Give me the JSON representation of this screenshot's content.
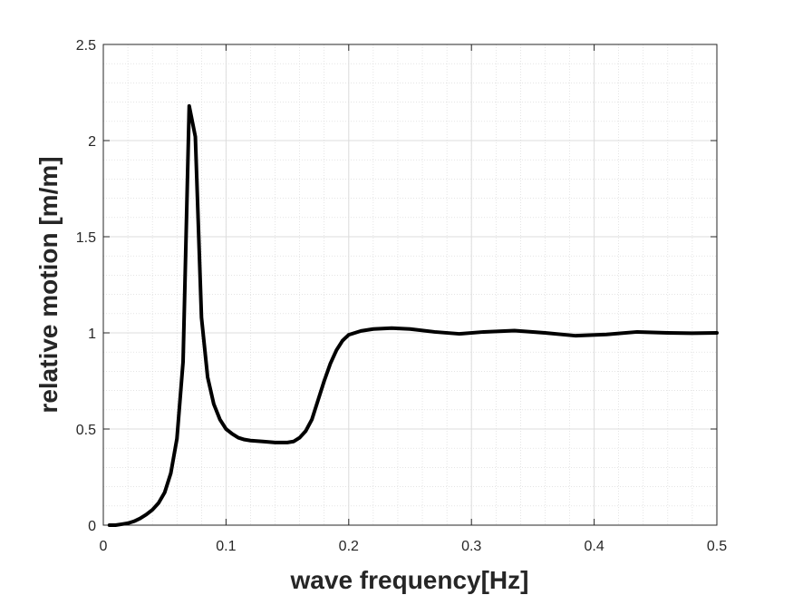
{
  "chart_data": {
    "type": "line",
    "title": "",
    "xlabel": "wave frequency[Hz]",
    "ylabel": "relative motion [m/m]",
    "xlim": [
      0,
      0.5
    ],
    "ylim": [
      0,
      2.5
    ],
    "xticks": [
      0,
      0.1,
      0.2,
      0.3,
      0.4,
      0.5
    ],
    "xtick_labels": [
      "0",
      "0.1",
      "0.2",
      "0.3",
      "0.4",
      "0.5"
    ],
    "yticks": [
      0,
      0.5,
      1,
      1.5,
      2,
      2.5
    ],
    "ytick_labels": [
      "0",
      "0.5",
      "1",
      "1.5",
      "2",
      "2.5"
    ],
    "grid": true,
    "minor_grid": true,
    "line_color": "#000000",
    "series": [
      {
        "x": [
          0.005,
          0.01,
          0.015,
          0.02,
          0.025,
          0.03,
          0.035,
          0.04,
          0.045,
          0.05,
          0.055,
          0.06,
          0.065,
          0.07,
          0.075,
          0.08,
          0.085,
          0.09,
          0.095,
          0.1,
          0.105,
          0.11,
          0.115,
          0.12,
          0.13,
          0.14,
          0.15,
          0.155,
          0.16,
          0.165,
          0.17,
          0.175,
          0.18,
          0.185,
          0.19,
          0.195,
          0.2,
          0.21,
          0.22,
          0.235,
          0.25,
          0.27,
          0.29,
          0.31,
          0.335,
          0.36,
          0.385,
          0.41,
          0.435,
          0.46,
          0.48,
          0.5
        ],
        "y": [
          0.0,
          0.0,
          0.005,
          0.01,
          0.02,
          0.035,
          0.055,
          0.08,
          0.115,
          0.17,
          0.27,
          0.45,
          0.85,
          2.18,
          2.02,
          1.08,
          0.77,
          0.63,
          0.55,
          0.5,
          0.475,
          0.455,
          0.445,
          0.44,
          0.435,
          0.43,
          0.43,
          0.435,
          0.455,
          0.49,
          0.55,
          0.65,
          0.75,
          0.84,
          0.91,
          0.96,
          0.99,
          1.01,
          1.02,
          1.025,
          1.02,
          1.005,
          0.995,
          1.005,
          1.012,
          1.0,
          0.985,
          0.992,
          1.005,
          1.0,
          0.998,
          1.0
        ]
      }
    ]
  }
}
